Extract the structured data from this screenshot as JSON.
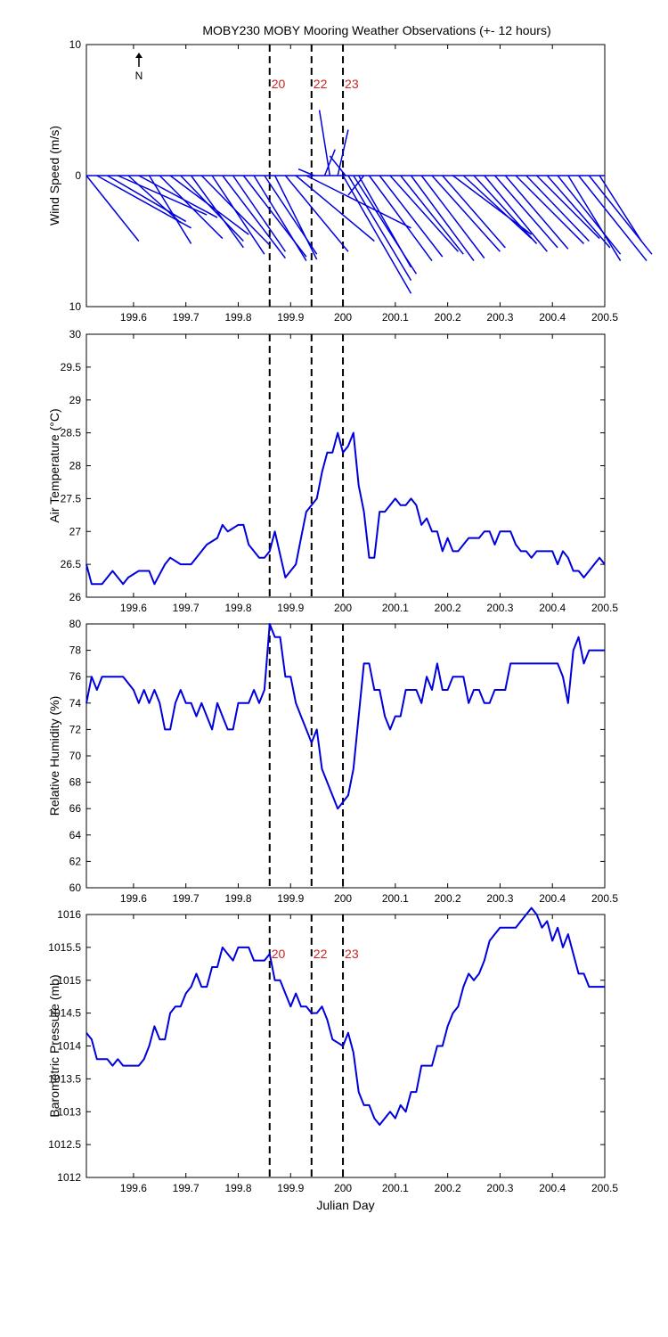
{
  "title": "MOBY230 MOBY Mooring Weather Observations (+- 12 hours)",
  "colors": {
    "series": "#0000dd",
    "marker_label": "#cc2222",
    "axes": "#000000"
  },
  "markers": {
    "x": [
      199.86,
      199.94,
      200.0
    ],
    "labels": [
      "20",
      "22",
      "23"
    ]
  },
  "chart_data": [
    {
      "type": "vector",
      "ylabel": "Wind Speed (m/s)",
      "xlim": [
        199.51,
        200.5
      ],
      "ylim": [
        -10,
        10
      ],
      "yticks": [
        10,
        0,
        10
      ],
      "xticks": [
        199.6,
        199.7,
        199.8,
        199.9,
        200,
        200.1,
        200.2,
        200.3,
        200.4,
        200.5
      ],
      "north_label": "N",
      "show_marker_labels": true,
      "vectors": [
        {
          "x": 199.51,
          "u": 0.1,
          "v": -5.0
        },
        {
          "x": 199.53,
          "u": 0.18,
          "v": -4.0
        },
        {
          "x": 199.55,
          "u": 0.15,
          "v": -3.5
        },
        {
          "x": 199.57,
          "u": 0.17,
          "v": -3.0
        },
        {
          "x": 199.59,
          "u": 0.1,
          "v": -3.6
        },
        {
          "x": 199.61,
          "u": 0.15,
          "v": -3.2
        },
        {
          "x": 199.63,
          "u": 0.08,
          "v": -5.2
        },
        {
          "x": 199.65,
          "u": 0.12,
          "v": -4.8
        },
        {
          "x": 199.67,
          "u": 0.15,
          "v": -4.5
        },
        {
          "x": 199.69,
          "u": 0.12,
          "v": -5.0
        },
        {
          "x": 199.71,
          "u": 0.1,
          "v": -5.5
        },
        {
          "x": 199.73,
          "u": 0.13,
          "v": -5.3
        },
        {
          "x": 199.75,
          "u": 0.1,
          "v": -6.0
        },
        {
          "x": 199.77,
          "u": 0.12,
          "v": -6.3
        },
        {
          "x": 199.79,
          "u": 0.1,
          "v": -5.8
        },
        {
          "x": 199.81,
          "u": 0.12,
          "v": -6.2
        },
        {
          "x": 199.83,
          "u": 0.1,
          "v": -6.5
        },
        {
          "x": 199.85,
          "u": 0.1,
          "v": -6.0
        },
        {
          "x": 199.87,
          "u": 0.08,
          "v": -6.4
        },
        {
          "x": 199.89,
          "u": 0.12,
          "v": -5.8
        },
        {
          "x": 199.91,
          "u": 0.15,
          "v": -5.0
        },
        {
          "x": 199.93,
          "u": 0.2,
          "v": -4.0
        },
        {
          "x": 199.945,
          "u": -0.03,
          "v": 0.5
        },
        {
          "x": 199.965,
          "u": 0.02,
          "v": 2.0
        },
        {
          "x": 199.975,
          "u": -0.02,
          "v": 5.0
        },
        {
          "x": 199.99,
          "u": 0.02,
          "v": 3.5
        },
        {
          "x": 200.005,
          "u": -0.03,
          "v": 1.5
        },
        {
          "x": 200.0,
          "u": 0.13,
          "v": -9.0
        },
        {
          "x": 200.01,
          "u": 0.12,
          "v": -8.0
        },
        {
          "x": 200.02,
          "u": 0.12,
          "v": -7.5
        },
        {
          "x": 200.03,
          "u": 0.1,
          "v": -7.0
        },
        {
          "x": 200.04,
          "u": -0.03,
          "v": -1.5
        },
        {
          "x": 200.05,
          "u": 0.12,
          "v": -6.5
        },
        {
          "x": 200.07,
          "u": 0.12,
          "v": -6.2
        },
        {
          "x": 200.09,
          "u": 0.13,
          "v": -5.8
        },
        {
          "x": 200.11,
          "u": 0.12,
          "v": -6.0
        },
        {
          "x": 200.13,
          "u": 0.12,
          "v": -6.5
        },
        {
          "x": 200.15,
          "u": 0.12,
          "v": -6.3
        },
        {
          "x": 200.17,
          "u": 0.13,
          "v": -5.8
        },
        {
          "x": 200.19,
          "u": 0.12,
          "v": -5.5
        },
        {
          "x": 200.21,
          "u": 0.15,
          "v": -4.5
        },
        {
          "x": 200.23,
          "u": 0.13,
          "v": -4.8
        },
        {
          "x": 200.25,
          "u": 0.12,
          "v": -5.2
        },
        {
          "x": 200.27,
          "u": 0.12,
          "v": -5.8
        },
        {
          "x": 200.29,
          "u": 0.12,
          "v": -5.5
        },
        {
          "x": 200.31,
          "u": 0.12,
          "v": -5.6
        },
        {
          "x": 200.33,
          "u": 0.13,
          "v": -5.2
        },
        {
          "x": 200.35,
          "u": 0.12,
          "v": -5.0
        },
        {
          "x": 200.37,
          "u": 0.12,
          "v": -4.8
        },
        {
          "x": 200.39,
          "u": 0.12,
          "v": -5.5
        },
        {
          "x": 200.41,
          "u": 0.12,
          "v": -6.0
        },
        {
          "x": 200.43,
          "u": 0.1,
          "v": -6.5
        },
        {
          "x": 200.45,
          "u": 0.13,
          "v": -6.5
        },
        {
          "x": 200.47,
          "u": 0.12,
          "v": -6.0
        },
        {
          "x": 200.49,
          "u": 0.08,
          "v": -5.0
        }
      ]
    },
    {
      "type": "line",
      "ylabel": "Air Temperature (°C)",
      "xlim": [
        199.51,
        200.5
      ],
      "ylim": [
        26,
        30
      ],
      "yticks": [
        26,
        26.5,
        27,
        27.5,
        28,
        28.5,
        29,
        29.5,
        30
      ],
      "xticks": [
        199.6,
        199.7,
        199.8,
        199.9,
        200,
        200.1,
        200.2,
        200.3,
        200.4,
        200.5
      ],
      "show_marker_labels": false,
      "x": [
        199.51,
        199.52,
        199.54,
        199.56,
        199.58,
        199.59,
        199.61,
        199.63,
        199.64,
        199.66,
        199.67,
        199.69,
        199.71,
        199.73,
        199.74,
        199.76,
        199.77,
        199.78,
        199.8,
        199.81,
        199.82,
        199.84,
        199.85,
        199.86,
        199.87,
        199.89,
        199.9,
        199.91,
        199.92,
        199.93,
        199.94,
        199.95,
        199.96,
        199.97,
        199.98,
        199.99,
        200.0,
        200.01,
        200.02,
        200.03,
        200.04,
        200.05,
        200.06,
        200.07,
        200.08,
        200.09,
        200.1,
        200.11,
        200.12,
        200.13,
        200.14,
        200.15,
        200.16,
        200.17,
        200.18,
        200.19,
        200.2,
        200.21,
        200.22,
        200.23,
        200.24,
        200.25,
        200.26,
        200.27,
        200.28,
        200.29,
        200.3,
        200.31,
        200.32,
        200.33,
        200.34,
        200.35,
        200.36,
        200.37,
        200.38,
        200.39,
        200.4,
        200.41,
        200.42,
        200.43,
        200.44,
        200.45,
        200.46,
        200.47,
        200.48,
        200.49,
        200.5
      ],
      "y": [
        26.5,
        26.2,
        26.2,
        26.4,
        26.2,
        26.3,
        26.4,
        26.4,
        26.2,
        26.5,
        26.6,
        26.5,
        26.5,
        26.7,
        26.8,
        26.9,
        27.1,
        27.0,
        27.1,
        27.1,
        26.8,
        26.6,
        26.6,
        26.7,
        27.0,
        26.3,
        26.4,
        26.5,
        26.9,
        27.3,
        27.4,
        27.5,
        27.9,
        28.2,
        28.2,
        28.5,
        28.2,
        28.3,
        28.5,
        27.7,
        27.3,
        26.6,
        26.6,
        27.3,
        27.3,
        27.4,
        27.5,
        27.4,
        27.4,
        27.5,
        27.4,
        27.1,
        27.2,
        27.0,
        27.0,
        26.7,
        26.9,
        26.7,
        26.7,
        26.8,
        26.9,
        26.9,
        26.9,
        27.0,
        27.0,
        26.8,
        27.0,
        27.0,
        27.0,
        26.8,
        26.7,
        26.7,
        26.6,
        26.7,
        26.7,
        26.7,
        26.7,
        26.5,
        26.7,
        26.6,
        26.4,
        26.4,
        26.3,
        26.4,
        26.5,
        26.6,
        26.5
      ]
    },
    {
      "type": "line",
      "ylabel": "Relative Humidity (%)",
      "xlim": [
        199.51,
        200.5
      ],
      "ylim": [
        60,
        80
      ],
      "yticks": [
        60,
        62,
        64,
        66,
        68,
        70,
        72,
        74,
        76,
        78,
        80
      ],
      "xticks": [
        199.6,
        199.7,
        199.8,
        199.9,
        200,
        200.1,
        200.2,
        200.3,
        200.4,
        200.5
      ],
      "show_marker_labels": false,
      "x": [
        199.51,
        199.52,
        199.53,
        199.54,
        199.55,
        199.56,
        199.58,
        199.6,
        199.61,
        199.62,
        199.63,
        199.64,
        199.65,
        199.66,
        199.67,
        199.68,
        199.69,
        199.7,
        199.71,
        199.72,
        199.73,
        199.74,
        199.75,
        199.76,
        199.77,
        199.78,
        199.79,
        199.8,
        199.81,
        199.82,
        199.83,
        199.84,
        199.85,
        199.86,
        199.87,
        199.88,
        199.89,
        199.9,
        199.91,
        199.92,
        199.93,
        199.94,
        199.95,
        199.96,
        199.97,
        199.98,
        199.99,
        200.0,
        200.01,
        200.02,
        200.03,
        200.04,
        200.05,
        200.06,
        200.07,
        200.08,
        200.09,
        200.1,
        200.11,
        200.12,
        200.13,
        200.14,
        200.15,
        200.16,
        200.17,
        200.18,
        200.19,
        200.2,
        200.21,
        200.22,
        200.23,
        200.24,
        200.25,
        200.26,
        200.27,
        200.28,
        200.29,
        200.3,
        200.31,
        200.32,
        200.33,
        200.35,
        200.37,
        200.39,
        200.41,
        200.42,
        200.43,
        200.44,
        200.45,
        200.46,
        200.47,
        200.48,
        200.49,
        200.5
      ],
      "y": [
        74,
        76,
        75,
        76,
        76,
        76,
        76,
        75,
        74,
        75,
        74,
        75,
        74,
        72,
        72,
        74,
        75,
        74,
        74,
        73,
        74,
        73,
        72,
        74,
        73,
        72,
        72,
        74,
        74,
        74,
        75,
        74,
        75,
        80,
        79,
        79,
        76,
        76,
        74,
        73,
        72,
        71,
        72,
        69,
        68,
        67,
        66,
        66.5,
        67,
        69,
        73,
        77,
        77,
        75,
        75,
        73,
        72,
        73,
        73,
        75,
        75,
        75,
        74,
        76,
        75,
        77,
        75,
        75,
        76,
        76,
        76,
        74,
        75,
        75,
        74,
        74,
        75,
        75,
        75,
        77,
        77,
        77,
        77,
        77,
        77,
        76,
        74,
        78,
        79,
        77,
        78,
        78,
        78,
        78
      ]
    },
    {
      "type": "line",
      "ylabel": "Barometric Pressure (mb)",
      "xlabel": "Julian Day",
      "xlim": [
        199.51,
        200.5
      ],
      "ylim": [
        1012,
        1016
      ],
      "yticks": [
        1012,
        1012.5,
        1013,
        1013.5,
        1014,
        1014.5,
        1015,
        1015.5,
        1016
      ],
      "xticks": [
        199.6,
        199.7,
        199.8,
        199.9,
        200,
        200.1,
        200.2,
        200.3,
        200.4,
        200.5
      ],
      "show_marker_labels": true,
      "x": [
        199.51,
        199.52,
        199.53,
        199.54,
        199.55,
        199.56,
        199.57,
        199.58,
        199.59,
        199.6,
        199.61,
        199.62,
        199.63,
        199.64,
        199.65,
        199.66,
        199.67,
        199.68,
        199.69,
        199.7,
        199.71,
        199.72,
        199.73,
        199.74,
        199.75,
        199.76,
        199.77,
        199.78,
        199.79,
        199.8,
        199.81,
        199.82,
        199.83,
        199.84,
        199.85,
        199.86,
        199.87,
        199.88,
        199.89,
        199.9,
        199.91,
        199.92,
        199.93,
        199.94,
        199.95,
        199.96,
        199.97,
        199.98,
        199.99,
        200.0,
        200.01,
        200.02,
        200.03,
        200.04,
        200.05,
        200.06,
        200.07,
        200.08,
        200.09,
        200.1,
        200.11,
        200.12,
        200.13,
        200.14,
        200.15,
        200.16,
        200.17,
        200.18,
        200.19,
        200.2,
        200.21,
        200.22,
        200.23,
        200.24,
        200.25,
        200.26,
        200.27,
        200.28,
        200.29,
        200.3,
        200.31,
        200.32,
        200.33,
        200.34,
        200.35,
        200.36,
        200.37,
        200.38,
        200.39,
        200.4,
        200.41,
        200.42,
        200.43,
        200.44,
        200.45,
        200.46,
        200.47,
        200.48,
        200.49,
        200.5
      ],
      "y": [
        1014.2,
        1014.1,
        1013.8,
        1013.8,
        1013.8,
        1013.7,
        1013.8,
        1013.7,
        1013.7,
        1013.7,
        1013.7,
        1013.8,
        1014.0,
        1014.3,
        1014.1,
        1014.1,
        1014.5,
        1014.6,
        1014.6,
        1014.8,
        1014.9,
        1015.1,
        1014.9,
        1014.9,
        1015.2,
        1015.2,
        1015.5,
        1015.4,
        1015.3,
        1015.5,
        1015.5,
        1015.5,
        1015.3,
        1015.3,
        1015.3,
        1015.4,
        1015.0,
        1015.0,
        1014.8,
        1014.6,
        1014.8,
        1014.6,
        1014.6,
        1014.5,
        1014.5,
        1014.6,
        1014.4,
        1014.1,
        1014.05,
        1014.0,
        1014.2,
        1013.9,
        1013.3,
        1013.1,
        1013.1,
        1012.9,
        1012.8,
        1012.9,
        1013.0,
        1012.9,
        1013.1,
        1013.0,
        1013.3,
        1013.3,
        1013.7,
        1013.7,
        1013.7,
        1014.0,
        1014.0,
        1014.3,
        1014.5,
        1014.6,
        1014.9,
        1015.1,
        1015.0,
        1015.1,
        1015.3,
        1015.6,
        1015.7,
        1015.8,
        1015.8,
        1015.8,
        1015.8,
        1015.9,
        1016.0,
        1016.1,
        1016.0,
        1015.8,
        1015.9,
        1015.6,
        1015.8,
        1015.5,
        1015.7,
        1015.4,
        1015.1,
        1015.1,
        1014.9,
        1014.9,
        1014.9,
        1014.9
      ]
    }
  ]
}
